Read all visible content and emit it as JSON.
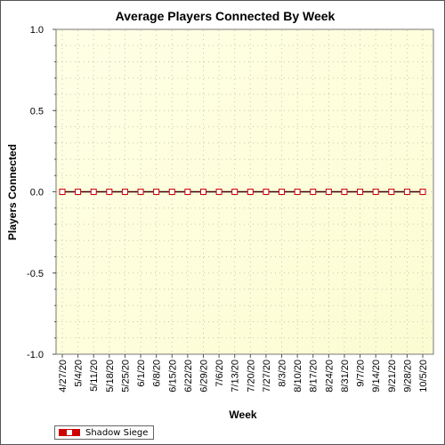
{
  "chart_data": {
    "type": "line",
    "title": "Average Players Connected By Week",
    "xlabel": "Week",
    "ylabel": "Players Connected",
    "ylim": [
      -1.0,
      1.0
    ],
    "yticks": [
      "1.0",
      "0.5",
      "0.0",
      "-0.5",
      "-1.0"
    ],
    "ytick_values": [
      1.0,
      0.5,
      0.0,
      -0.5,
      -1.0
    ],
    "grid": true,
    "legend_position": "bottom-left",
    "categories": [
      "4/27/20",
      "5/4/20",
      "5/11/20",
      "5/18/20",
      "5/25/20",
      "6/1/20",
      "6/8/20",
      "6/15/20",
      "6/22/20",
      "6/29/20",
      "7/6/20",
      "7/13/20",
      "7/20/20",
      "7/27/20",
      "8/3/20",
      "8/10/20",
      "8/17/20",
      "8/24/20",
      "8/31/20",
      "9/7/20",
      "9/14/20",
      "9/21/20",
      "9/28/20",
      "10/5/20"
    ],
    "series": [
      {
        "name": "Shadow Siege",
        "color": "#cc0000",
        "values": [
          0,
          0,
          0,
          0,
          0,
          0,
          0,
          0,
          0,
          0,
          0,
          0,
          0,
          0,
          0,
          0,
          0,
          0,
          0,
          0,
          0,
          0,
          0,
          0
        ]
      }
    ]
  }
}
